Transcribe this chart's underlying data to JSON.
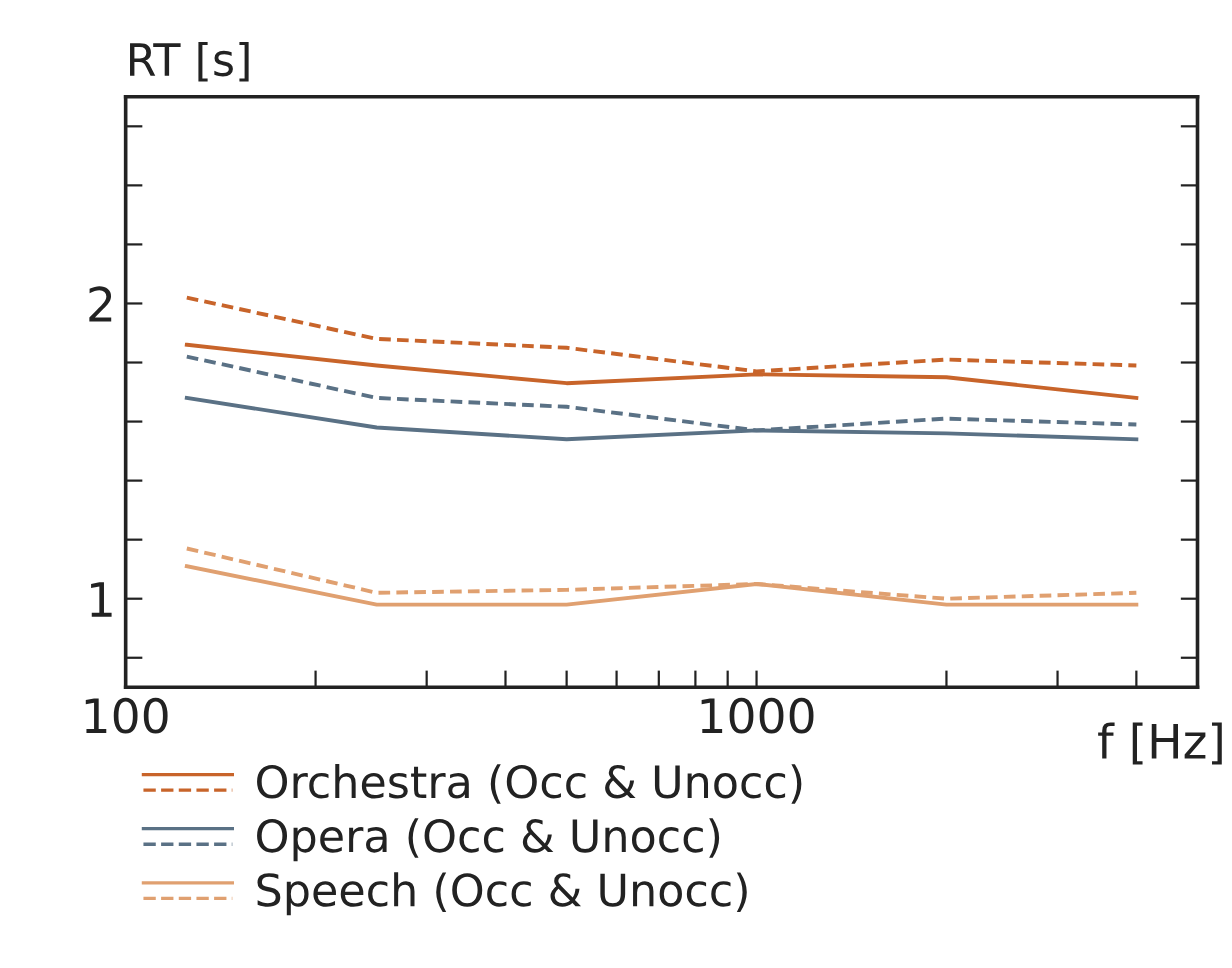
{
  "chart_data": {
    "type": "line",
    "ylabel": "RT [s]",
    "xlabel": "f [Hz]",
    "x": [
      125,
      250,
      500,
      1000,
      2000,
      4000
    ],
    "log": "x",
    "xlim": [
      100,
      5000
    ],
    "xticks": [
      100,
      {
        "value": 200,
        "label": null
      },
      {
        "value": 300,
        "label": null
      },
      {
        "value": 400,
        "label": null
      },
      {
        "value": 500,
        "label": null
      },
      {
        "value": 600,
        "label": null
      },
      {
        "value": 700,
        "label": null
      },
      {
        "value": 800,
        "label": null
      },
      {
        "value": 900,
        "label": null
      },
      1000,
      {
        "value": 2000,
        "label": null
      },
      {
        "value": 3000,
        "label": null
      },
      {
        "value": 4000,
        "label": null
      }
    ],
    "ylim": [
      0.7,
      2.7
    ],
    "yticks": [
      {
        "value": 0.8,
        "label": null
      },
      1,
      {
        "value": 1.2,
        "label": null
      },
      {
        "value": 1.4,
        "label": null
      },
      {
        "value": 1.6,
        "label": null
      },
      {
        "value": 1.8,
        "label": null
      },
      2,
      {
        "value": 2.2,
        "label": null
      },
      {
        "value": 2.4,
        "label": null
      },
      {
        "value": 2.6,
        "label": null
      }
    ],
    "grid": false,
    "legend": "bottom",
    "series": [
      {
        "name": "Orchestra (Occ & Unocc)",
        "color": "#c8642a",
        "line_style": "solid",
        "values": [
          1.86,
          1.79,
          1.73,
          1.76,
          1.75,
          1.68
        ]
      },
      {
        "color": "#c8642a",
        "line_style": "dashed",
        "values": [
          2.02,
          1.88,
          1.85,
          1.77,
          1.81,
          1.79
        ]
      },
      {
        "name": "Opera (Occ & Unocc)",
        "color": "#5a7185",
        "line_style": "solid",
        "values": [
          1.68,
          1.58,
          1.54,
          1.57,
          1.56,
          1.54
        ]
      },
      {
        "color": "#5a7185",
        "line_style": "dashed",
        "values": [
          1.82,
          1.68,
          1.65,
          1.57,
          1.61,
          1.59
        ]
      },
      {
        "name": "Speech (Occ & Unocc)",
        "color": "#e0a070",
        "line_style": "solid",
        "values": [
          1.11,
          0.98,
          0.98,
          1.05,
          0.98,
          0.98
        ]
      },
      {
        "color": "#e0a070",
        "line_style": "dashed",
        "values": [
          1.17,
          1.02,
          1.03,
          1.05,
          1.0,
          1.02
        ]
      }
    ]
  }
}
